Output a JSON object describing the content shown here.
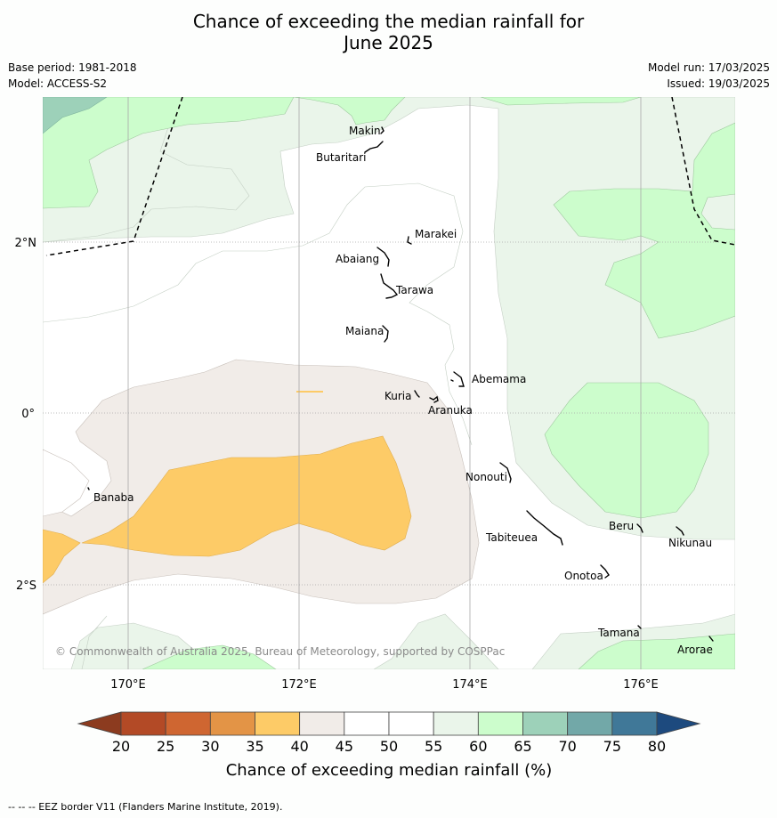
{
  "title": {
    "line1": "Chance of exceeding the median rainfall for",
    "line2": "June 2025"
  },
  "meta": {
    "base_period": "Base period: 1981-2018",
    "model": "Model: ACCESS-S2",
    "model_run": "Model run: 17/03/2025",
    "issued": "Issued: 19/03/2025"
  },
  "axes": {
    "lon_labels": [
      "170°E",
      "172°E",
      "174°E",
      "176°E"
    ],
    "lat_labels": [
      "2°N",
      "0°",
      "2°S"
    ]
  },
  "places": [
    "Makin",
    "Butaritari",
    "Marakei",
    "Abaiang",
    "Tarawa",
    "Maiana",
    "Abemama",
    "Kuria",
    "Aranuka",
    "Banaba",
    "Nonouti",
    "Tabiteuea",
    "Beru",
    "Nikunau",
    "Onotoa",
    "Tamana",
    "Arorae"
  ],
  "copyright": "© Commonwealth of Australia 2025, Bureau of Meteorology, supported by COSPPac",
  "colorbar": {
    "ticks": [
      "20",
      "25",
      "30",
      "35",
      "40",
      "45",
      "50",
      "55",
      "60",
      "65",
      "70",
      "75",
      "80"
    ],
    "colors": [
      "#b34a26",
      "#cf6631",
      "#e39446",
      "#fdcb67",
      "#f1ece8",
      "#ffffff",
      "#ffffff",
      "#eaf5ea",
      "#ccfdcc",
      "#9dd1b9",
      "#72a8a8",
      "#407898"
    ],
    "under_color": "#8c3b1f",
    "over_color": "#1d4a7e",
    "title": "Chance of exceeding median rainfall (%)"
  },
  "footnote": "--  --  -- EEZ border V11 (Flanders Marine Institute, 2019)."
}
